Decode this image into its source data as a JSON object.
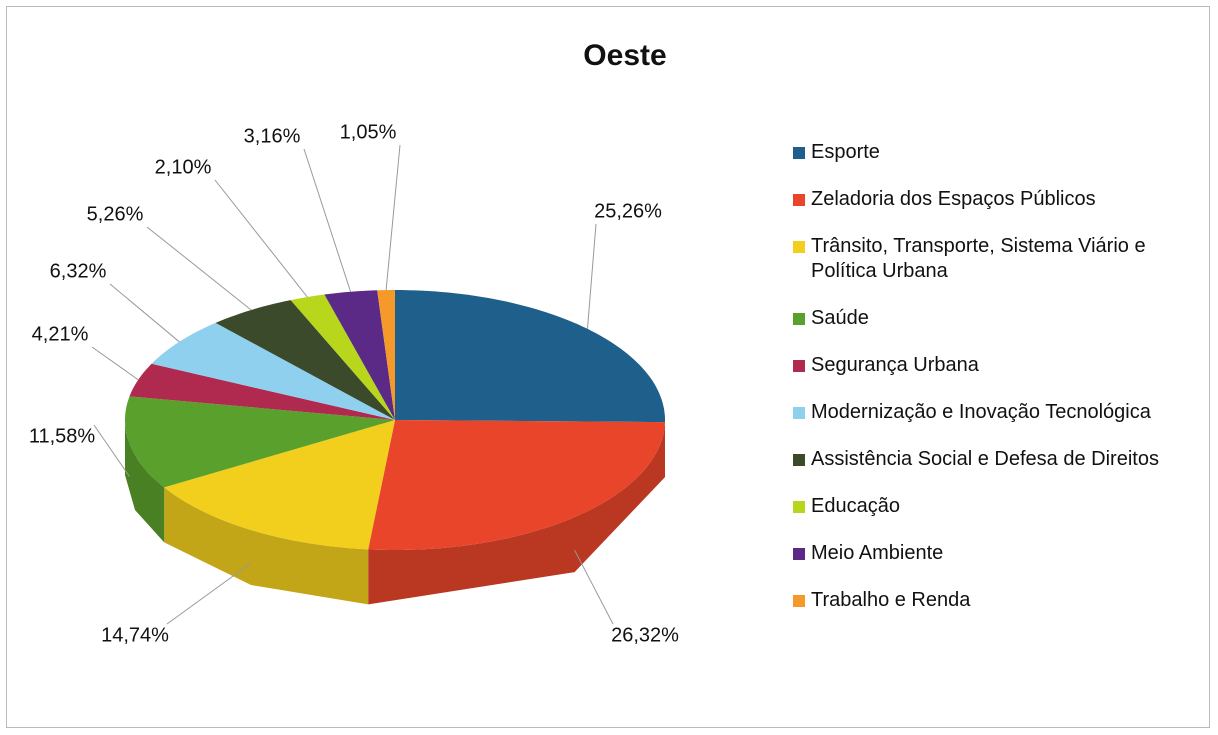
{
  "chart_data": {
    "type": "pie",
    "title": "Oeste",
    "categories": [
      "Esporte",
      "Zeladoria dos Espaços Públicos",
      "Trânsito, Transporte, Sistema Viário e Política Urbana",
      "Saúde",
      "Segurança Urbana",
      "Modernização e Inovação Tecnológica",
      "Assistência Social e Defesa de Direitos",
      "Educação",
      "Meio Ambiente",
      "Trabalho e Renda"
    ],
    "values": [
      25.26,
      26.32,
      14.74,
      11.58,
      4.21,
      6.32,
      5.26,
      2.1,
      3.16,
      1.05
    ],
    "value_labels": [
      "25,26%",
      "26,32%",
      "14,74%",
      "11,58%",
      "4,21%",
      "6,32%",
      "5,26%",
      "2,10%",
      "3,16%",
      "1,05%"
    ],
    "colors": [
      "#1f5f8b",
      "#e8452a",
      "#f2cf1d",
      "#5aa02c",
      "#b0294e",
      "#8fd0ee",
      "#3a4a2a",
      "#b8d61c",
      "#5b2a86",
      "#f59a2a"
    ],
    "legend": "right"
  }
}
